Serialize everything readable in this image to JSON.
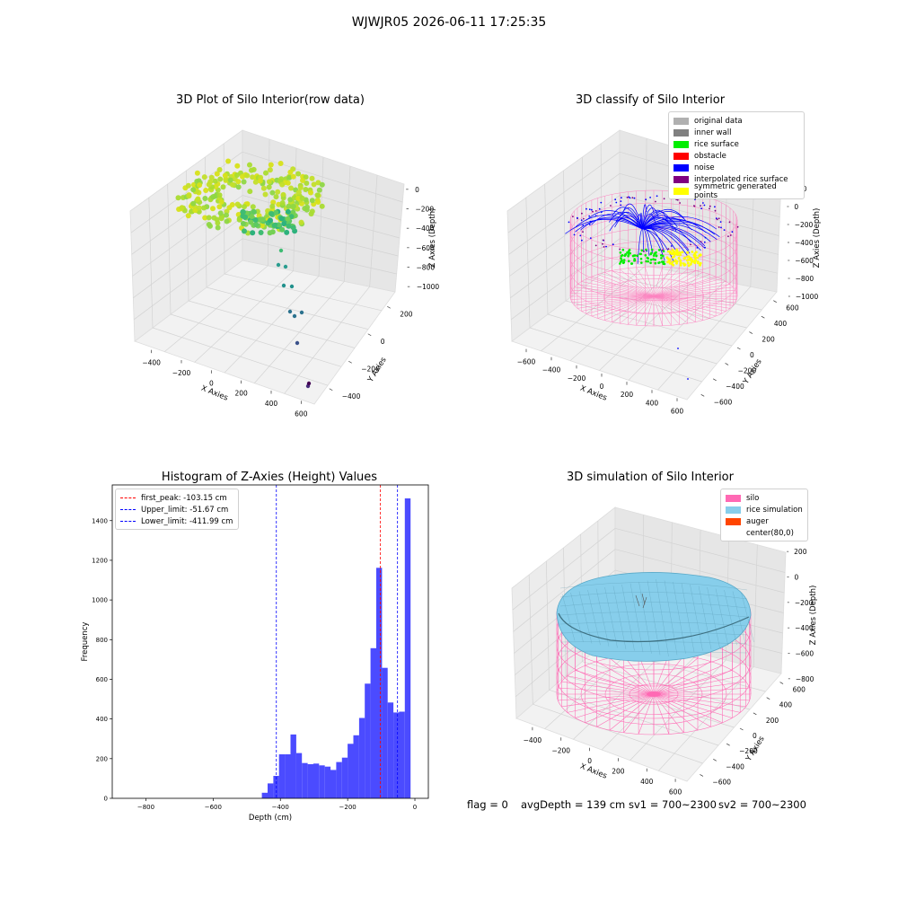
{
  "figure": {
    "suptitle": "WJWJR05 2026-06-11 17:25:35",
    "footer": {
      "flag": "flag = 0",
      "avg_depth": "avgDepth = 139 cm",
      "sv1": "sv1 = 700~2300",
      "sv2": "sv2 = 700~2300"
    }
  },
  "panels": {
    "raw": {
      "title": "3D Plot of Silo Interior(row data)",
      "xlabel": "X Axies",
      "ylabel": "Y Axies",
      "zlabel": "Z Axies (Depth)",
      "xticks": [
        "−400",
        "−200",
        "0",
        "200",
        "400",
        "600"
      ],
      "yticks": [
        "−400",
        "−200",
        "0",
        "200"
      ],
      "zticks": [
        "0",
        "−200",
        "−400",
        "−600",
        "−800",
        "−1000"
      ]
    },
    "classify": {
      "title": "3D classify of Silo Interior",
      "xlabel": "X Axies",
      "ylabel": "Y Axies",
      "zlabel": "Z Axies (Depth)",
      "xticks": [
        "−600",
        "−400",
        "−200",
        "0",
        "200",
        "400",
        "600"
      ],
      "yticks": [
        "−600",
        "−400",
        "−200",
        "0",
        "200",
        "400",
        "600"
      ],
      "zticks": [
        "200",
        "0",
        "−200",
        "−400",
        "−600",
        "−800",
        "−1000"
      ],
      "legend": [
        {
          "label": "original data",
          "color": "#b0b0b0"
        },
        {
          "label": "inner wall",
          "color": "#808080"
        },
        {
          "label": "rice surface",
          "color": "#00ee00"
        },
        {
          "label": "obstacle",
          "color": "#ff0000"
        },
        {
          "label": "noise",
          "color": "#0000ff"
        },
        {
          "label": "interpolated rice surface",
          "color": "#800080"
        },
        {
          "label": "symmetric generated points",
          "color": "#ffff00"
        }
      ]
    },
    "simulation": {
      "title": "3D simulation of Silo Interior",
      "xlabel": "X Axies",
      "ylabel": "Y Axies",
      "zlabel": "Z Axies (Depth)",
      "xticks": [
        "−400",
        "−200",
        "0",
        "200",
        "400",
        "600"
      ],
      "yticks": [
        "−600",
        "−400",
        "−200",
        "0",
        "200",
        "400",
        "600"
      ],
      "zticks": [
        "200",
        "0",
        "−200",
        "−400",
        "−600",
        "−800"
      ],
      "legend": [
        {
          "label": "silo",
          "color": "#ff69b4"
        },
        {
          "label": "rice simulation",
          "color": "#87ceeb"
        },
        {
          "label": "auger",
          "color": "#ff4500"
        },
        {
          "label": "center(80,0)",
          "color": ""
        }
      ]
    }
  },
  "chart_data": {
    "type": "bar",
    "title": "Histogram of Z-Axies (Height) Values",
    "xlabel": "Depth (cm)",
    "ylabel": "Frequency",
    "xlim": [
      -900,
      40
    ],
    "ylim": [
      0,
      1580
    ],
    "xticks": [
      -800,
      -600,
      -400,
      -200,
      0
    ],
    "yticks": [
      0,
      200,
      400,
      600,
      800,
      1000,
      1200,
      1400
    ],
    "xtick_labels": [
      "−800",
      "−600",
      "−400",
      "−200",
      "0"
    ],
    "ytick_labels": [
      "0",
      "200",
      "400",
      "600",
      "800",
      "1000",
      "1200",
      "1400"
    ],
    "bar_color": "#4b4bff",
    "bins": {
      "edges": [
        -455,
        -438,
        -421,
        -404,
        -387,
        -370,
        -353,
        -336,
        -319,
        -302,
        -285,
        -268,
        -251,
        -234,
        -217,
        -200,
        -183,
        -166,
        -149,
        -132,
        -115,
        -98,
        -81,
        -64,
        -47,
        -30,
        -13,
        0
      ],
      "counts": [
        28,
        75,
        113,
        222,
        222,
        322,
        228,
        178,
        172,
        175,
        166,
        160,
        143,
        183,
        205,
        275,
        318,
        405,
        578,
        757,
        1162,
        658,
        483,
        433,
        437,
        1512,
        0
      ]
    },
    "legend": [
      {
        "label": "first_peak: -103.15 cm",
        "color": "#ff0000",
        "value": -103.15
      },
      {
        "label": "Upper_limit: -51.67 cm",
        "color": "#0000ff",
        "value": -51.67
      },
      {
        "label": "Lower_limit: -411.99 cm",
        "color": "#0000ff",
        "value": -411.99
      }
    ]
  }
}
